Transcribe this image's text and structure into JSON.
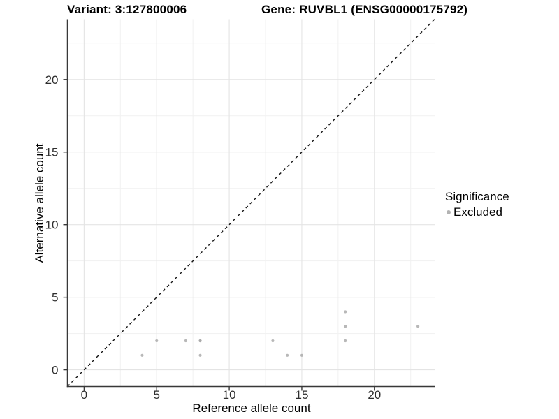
{
  "figure": {
    "title_variant": "Variant: 3:127800006",
    "title_gene": "Gene: RUVBL1 (ENSG00000175792)"
  },
  "chart_data": {
    "type": "scatter",
    "title_left": "Variant: 3:127800006",
    "title_right": "Gene: RUVBL1 (ENSG00000175792)",
    "xlabel": "Reference allele count",
    "ylabel": "Alternative allele count",
    "xlim": [
      -1.15,
      24.15
    ],
    "ylim": [
      -1.15,
      24.15
    ],
    "x_ticks": [
      0,
      5,
      10,
      15,
      20
    ],
    "y_ticks": [
      0,
      5,
      10,
      15,
      20
    ],
    "x_minor_gridlines": [
      2.5,
      7.5,
      12.5,
      17.5,
      22.5
    ],
    "y_minor_gridlines": [
      2.5,
      7.5,
      12.5,
      17.5,
      22.5
    ],
    "grid": "major and minor, light gray on white panel",
    "identity_line": {
      "equation": "y = x",
      "style": "dashed",
      "color": "#141414"
    },
    "series": [
      {
        "name": "Excluded",
        "color": "#a8a8a8",
        "points": [
          {
            "x": 4,
            "y": 1
          },
          {
            "x": 5,
            "y": 2
          },
          {
            "x": 7,
            "y": 2
          },
          {
            "x": 8,
            "y": 1
          },
          {
            "x": 8,
            "y": 2
          },
          {
            "x": 8,
            "y": 2
          },
          {
            "x": 13,
            "y": 2
          },
          {
            "x": 14,
            "y": 1
          },
          {
            "x": 15,
            "y": 1
          },
          {
            "x": 18,
            "y": 2
          },
          {
            "x": 18,
            "y": 3
          },
          {
            "x": 18,
            "y": 4
          },
          {
            "x": 23,
            "y": 3
          }
        ]
      }
    ],
    "legend": {
      "title": "Significance",
      "position": "right",
      "items": [
        {
          "label": "Excluded",
          "color": "#b3b3b3"
        }
      ]
    }
  },
  "colors": {
    "background": "#ffffff",
    "grid_major": "#e4e4e4",
    "grid_minor": "#f1f1f1",
    "axis_line": "#383838",
    "tick_label": "#2e2e2e",
    "point": "#a8a8a8",
    "identity_line": "#141414"
  }
}
